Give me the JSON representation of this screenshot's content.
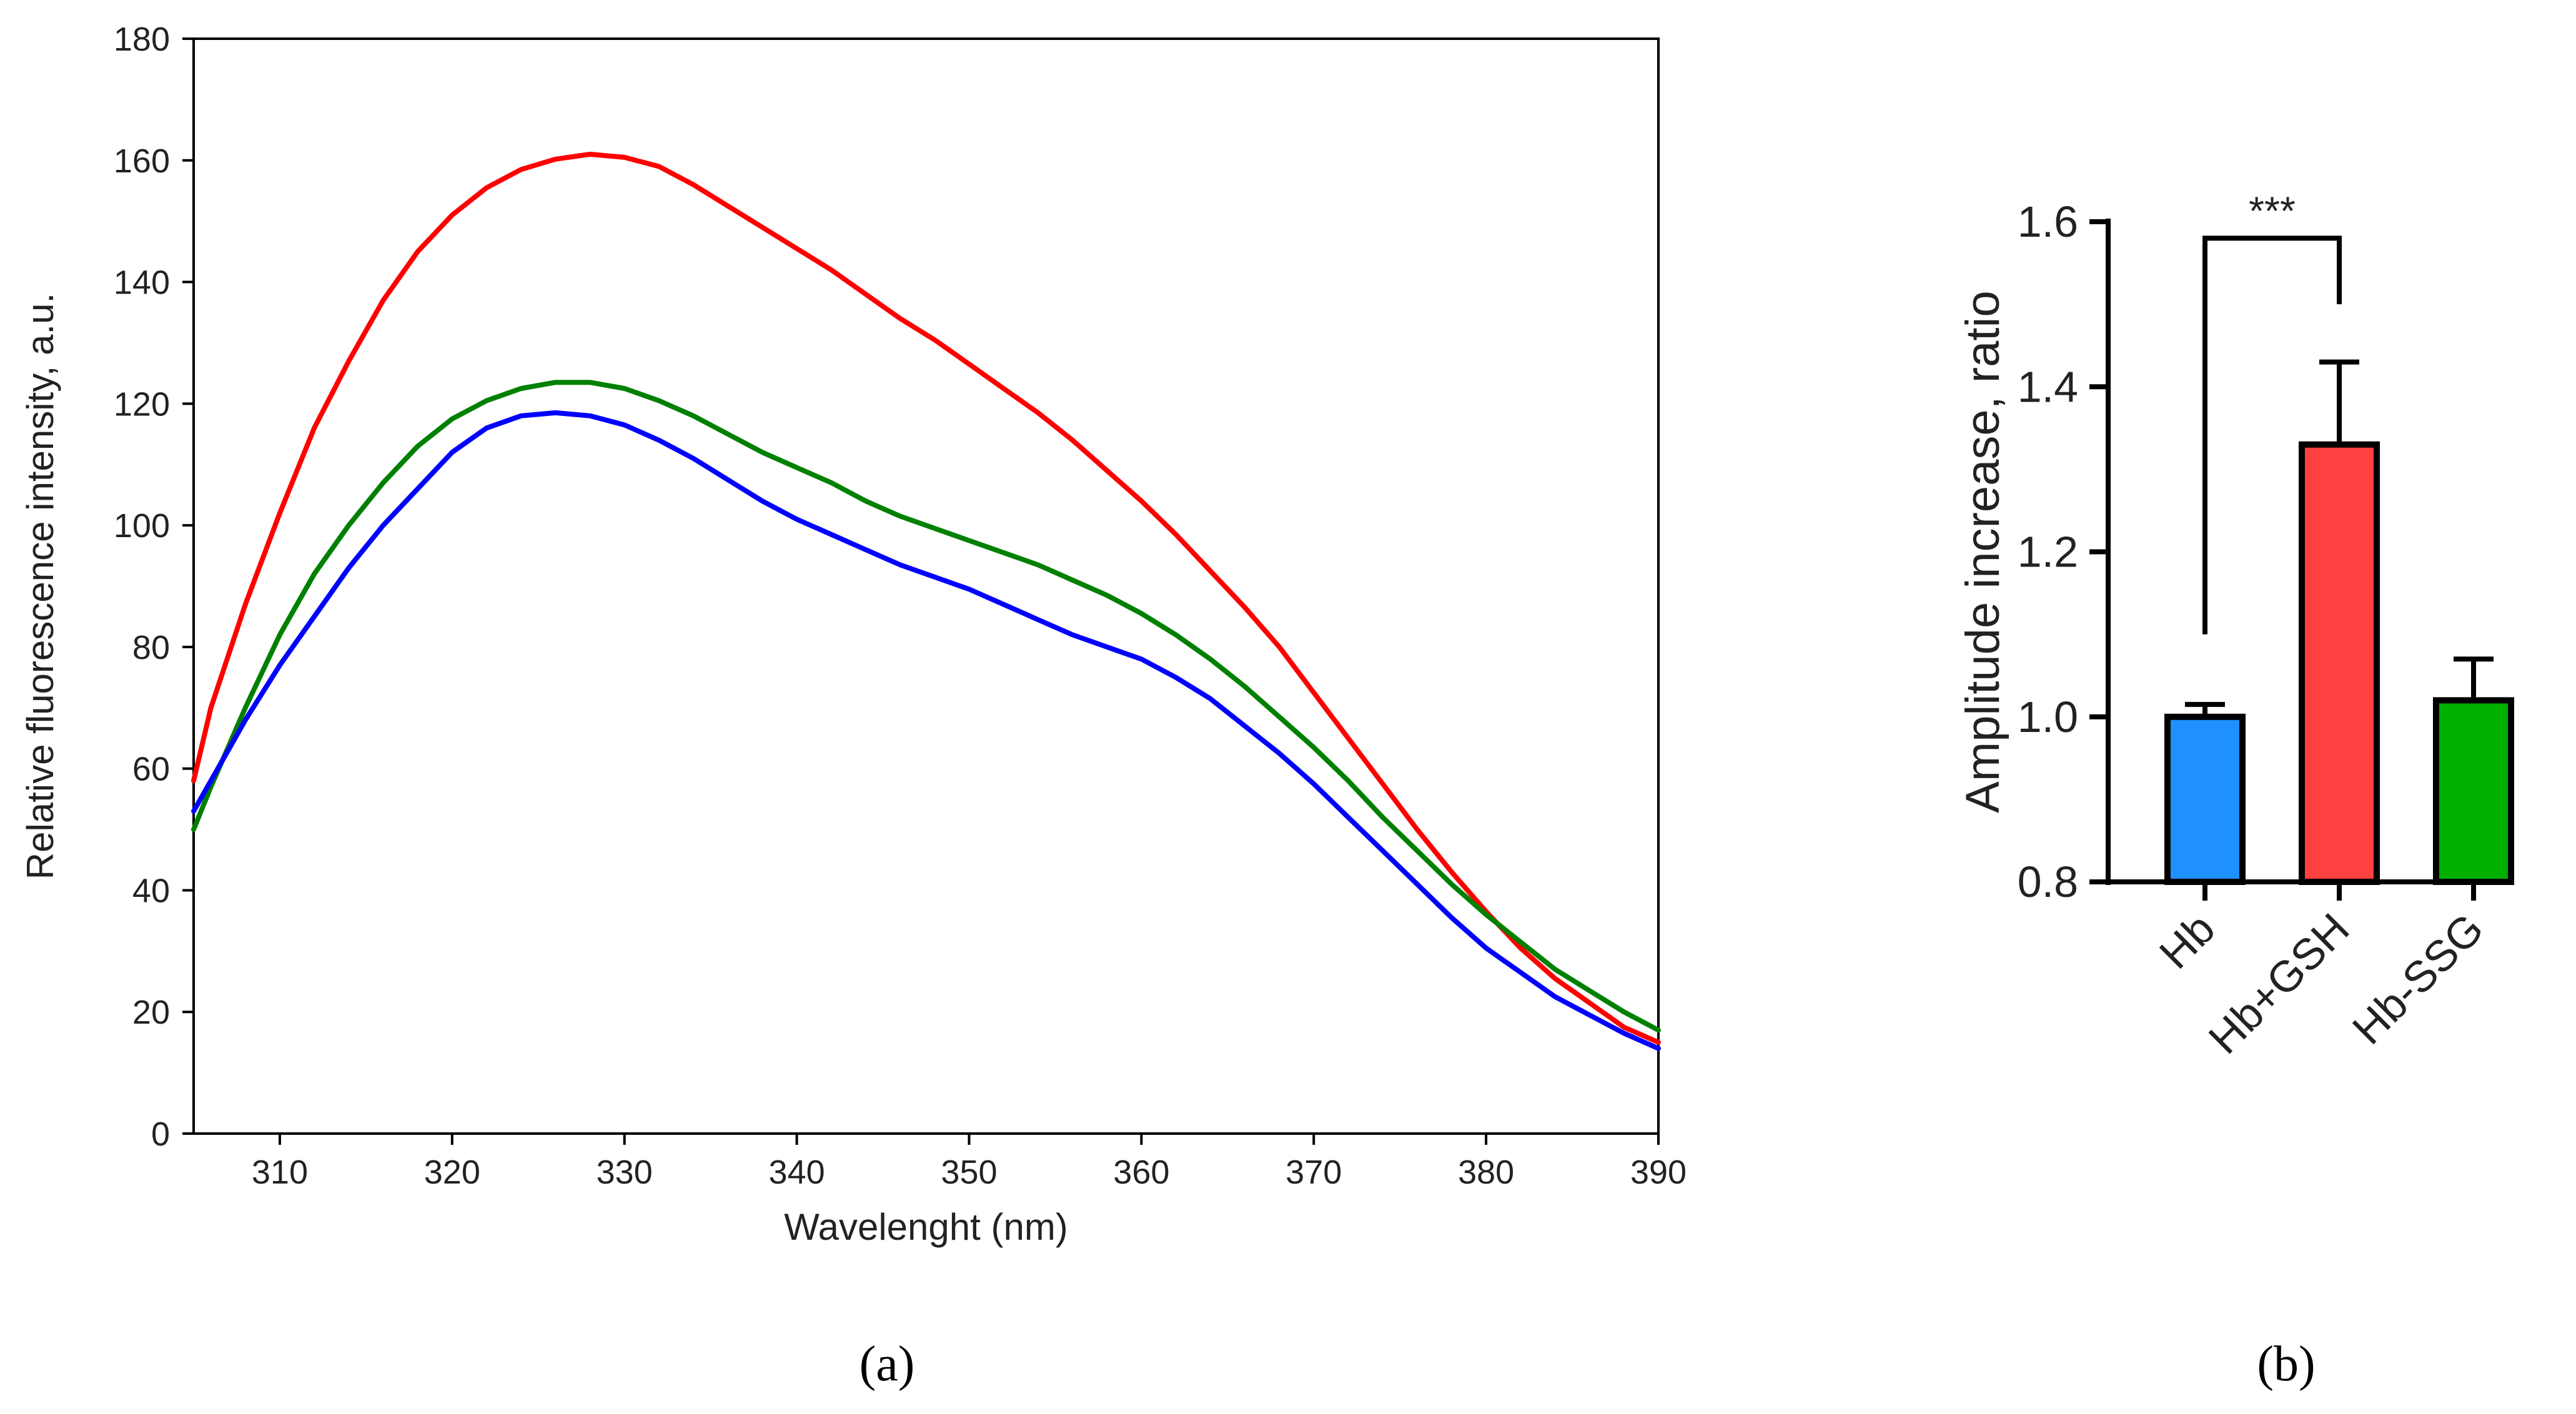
{
  "chart_data": [
    {
      "panel_label": "(a)",
      "type": "line",
      "title": "",
      "xlabel": "Wavelenght (nm)",
      "ylabel": "Relative fluorescence intensity, a.u.",
      "xlim": [
        305,
        390
      ],
      "ylim": [
        0,
        180
      ],
      "xticks": [
        310,
        320,
        330,
        340,
        350,
        360,
        370,
        380,
        390
      ],
      "yticks": [
        0,
        20,
        40,
        60,
        80,
        100,
        120,
        140,
        160,
        180
      ],
      "grid": false,
      "x": [
        305,
        306,
        308,
        310,
        312,
        314,
        316,
        318,
        320,
        322,
        324,
        326,
        328,
        330,
        332,
        334,
        336,
        338,
        340,
        342,
        344,
        346,
        348,
        350,
        352,
        354,
        356,
        358,
        360,
        362,
        364,
        366,
        368,
        370,
        372,
        374,
        376,
        378,
        380,
        382,
        384,
        386,
        388,
        390
      ],
      "series": [
        {
          "name": "red",
          "color": "#ff0000",
          "values": [
            58,
            70,
            87,
            102,
            116,
            127,
            137,
            145,
            151,
            155.5,
            158.5,
            160.2,
            161,
            160.5,
            159,
            156,
            152.5,
            149,
            145.5,
            142,
            138,
            134,
            130.5,
            126.5,
            122.5,
            118.5,
            114,
            109,
            104,
            98.5,
            92.5,
            86.5,
            80,
            72.5,
            65,
            57.5,
            50,
            43,
            36.5,
            30.5,
            25.5,
            21.5,
            17.5,
            15
          ]
        },
        {
          "name": "green",
          "color": "#008000",
          "values": [
            50,
            57,
            70,
            82,
            92,
            100,
            107,
            113,
            117.5,
            120.5,
            122.5,
            123.5,
            123.5,
            122.5,
            120.5,
            118,
            115,
            112,
            109.5,
            107,
            104,
            101.5,
            99.5,
            97.5,
            95.5,
            93.5,
            91,
            88.5,
            85.5,
            82,
            78,
            73.5,
            68.5,
            63.5,
            58,
            52,
            46.5,
            41,
            36,
            31.5,
            27,
            23.5,
            20,
            17
          ]
        },
        {
          "name": "blue",
          "color": "#0000ff",
          "values": [
            53,
            58,
            68,
            77,
            85,
            93,
            100,
            106,
            112,
            116,
            118,
            118.5,
            118,
            116.5,
            114,
            111,
            107.5,
            104,
            101,
            98.5,
            96,
            93.5,
            91.5,
            89.5,
            87,
            84.5,
            82,
            80,
            78,
            75,
            71.5,
            67,
            62.5,
            57.5,
            52,
            46.5,
            41,
            35.5,
            30.5,
            26.5,
            22.5,
            19.5,
            16.5,
            14
          ]
        }
      ]
    },
    {
      "panel_label": "(b)",
      "type": "bar",
      "title": "",
      "xlabel": "",
      "ylabel": "Amplitude increase, ratio",
      "ylim": [
        0.8,
        1.6
      ],
      "yticks": [
        "0.8",
        "1.0",
        "1.2",
        "1.4",
        "1.6"
      ],
      "categories": [
        "Hb",
        "Hb+GSH",
        "Hb-SSG"
      ],
      "values": [
        1.0,
        1.33,
        1.02
      ],
      "errors": [
        0.015,
        0.1,
        0.05
      ],
      "colors": [
        "#1e90ff",
        "#ff4040",
        "#00b000"
      ],
      "significance": {
        "from": 0,
        "to": 1,
        "label": "***",
        "y": 1.58
      },
      "grid": false
    }
  ]
}
